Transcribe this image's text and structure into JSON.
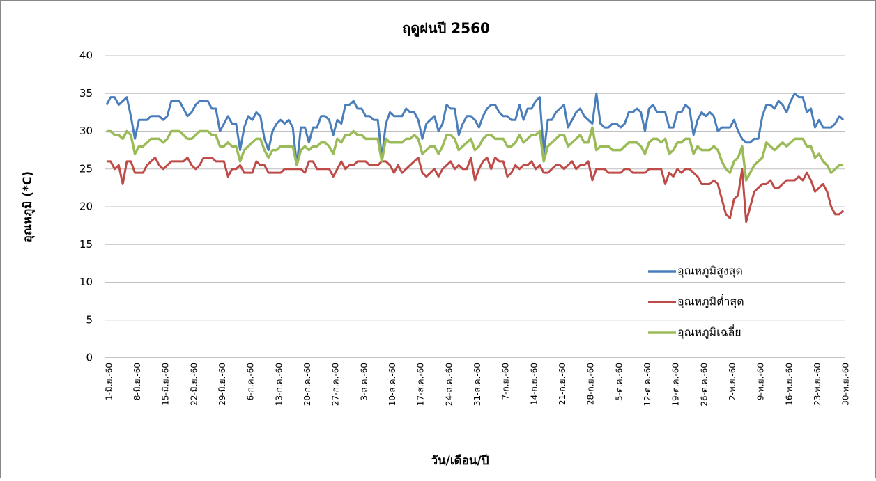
{
  "chart_data": {
    "type": "line",
    "title": "ฤดูฝนปี 2560",
    "y_label": "อุณหภูมิ (*C)",
    "x_label": "วัน/เดือน/ปี",
    "ylim": [
      0,
      40
    ],
    "yticks": [
      0,
      5,
      10,
      15,
      20,
      25,
      30,
      35,
      40
    ],
    "grid": true,
    "legend": "right",
    "categories": [
      "1-มิ.ย.-60",
      null,
      null,
      null,
      null,
      null,
      null,
      "8-มิ.ย.-60",
      null,
      null,
      null,
      null,
      null,
      null,
      "15-มิ.ย.-60",
      null,
      null,
      null,
      null,
      null,
      null,
      "22-มิ.ย.-60",
      null,
      null,
      null,
      null,
      null,
      null,
      "29-มิ.ย.-60",
      null,
      null,
      null,
      null,
      null,
      null,
      "6-ก.ค.-60",
      null,
      null,
      null,
      null,
      null,
      null,
      "13-ก.ค.-60",
      null,
      null,
      null,
      null,
      null,
      null,
      "20-ก.ค.-60",
      null,
      null,
      null,
      null,
      null,
      null,
      "27-ก.ค.-60",
      null,
      null,
      null,
      null,
      null,
      null,
      "3-ส.ค.-60",
      null,
      null,
      null,
      null,
      null,
      null,
      "10-ส.ค.-60",
      null,
      null,
      null,
      null,
      null,
      null,
      "17-ส.ค.-60",
      null,
      null,
      null,
      null,
      null,
      null,
      "24-ส.ค.-60",
      null,
      null,
      null,
      null,
      null,
      null,
      "31-ส.ค.-60",
      null,
      null,
      null,
      null,
      null,
      null,
      "7-ก.ย.-60",
      null,
      null,
      null,
      null,
      null,
      null,
      "14-ก.ย.-60",
      null,
      null,
      null,
      null,
      null,
      null,
      "21-ก.ย.-60",
      null,
      null,
      null,
      null,
      null,
      null,
      "28-ก.ย.-60",
      null,
      null,
      null,
      null,
      null,
      null,
      "5-ต.ค.-60",
      null,
      null,
      null,
      null,
      null,
      null,
      "12-ต.ค.-60",
      null,
      null,
      null,
      null,
      null,
      null,
      "19-ต.ค.-60",
      null,
      null,
      null,
      null,
      null,
      null,
      "26-ต.ค.-60",
      null,
      null,
      null,
      null,
      null,
      null,
      "2-พ.ย.-60",
      null,
      null,
      null,
      null,
      null,
      null,
      "9-พ.ย.-60",
      null,
      null,
      null,
      null,
      null,
      null,
      "16-พ.ย.-60",
      null,
      null,
      null,
      null,
      null,
      null,
      "23-พ.ย.-60",
      null,
      null,
      null,
      null,
      null,
      null,
      "30-พ.ย.-60"
    ],
    "series": [
      {
        "name": "อุณหภูมิสูงสุด",
        "color": "#4a7ebb",
        "values": [
          33.5,
          34.5,
          34.5,
          33.5,
          34,
          34.5,
          32,
          29,
          31.5,
          31.5,
          31.5,
          32,
          32,
          32,
          31.5,
          32,
          34,
          34,
          34,
          33,
          32,
          32.5,
          33.5,
          34,
          34,
          34,
          33,
          33,
          30,
          31,
          32,
          31,
          31,
          27.5,
          30.5,
          32,
          31.5,
          32.5,
          32,
          29,
          27.5,
          30,
          31,
          31.5,
          31,
          31.5,
          30.5,
          25.5,
          30.5,
          30.5,
          28.5,
          30.5,
          30.5,
          32,
          32,
          31.5,
          29.5,
          31.5,
          31,
          33.5,
          33.5,
          34,
          33,
          33,
          32,
          32,
          31.5,
          31.5,
          26.5,
          31,
          32.5,
          32,
          32,
          32,
          33,
          32.5,
          32.5,
          31.5,
          29,
          31,
          31.5,
          32,
          30,
          31,
          33.5,
          33,
          33,
          29.5,
          31,
          32,
          32,
          31.5,
          30.5,
          32,
          33,
          33.5,
          33.5,
          32.5,
          32,
          32,
          31.5,
          31.5,
          33.5,
          31.5,
          33,
          33,
          34,
          34.5,
          27,
          31.5,
          31.5,
          32.5,
          33,
          33.5,
          30.5,
          31.5,
          32.5,
          33,
          32,
          31.5,
          31,
          35,
          31,
          30.5,
          30.5,
          31,
          31,
          30.5,
          31,
          32.5,
          32.5,
          33,
          32.5,
          30,
          33,
          33.5,
          32.5,
          32.5,
          32.5,
          30.5,
          30.5,
          32.5,
          32.5,
          33.5,
          33,
          29.5,
          31.5,
          32.5,
          32,
          32.5,
          32,
          30,
          30.5,
          30.5,
          30.5,
          31.5,
          30,
          29,
          28.5,
          28.5,
          29,
          29,
          32,
          33.5,
          33.5,
          33,
          34,
          33.5,
          32.5,
          34,
          35,
          34.5,
          34.5,
          32.5,
          33,
          30.5,
          31.5,
          30.5,
          30.5,
          30.5,
          31,
          32,
          31.5
        ]
      },
      {
        "name": "อุณหภูมิต่ำสุด",
        "color": "#be4b48",
        "values": [
          26,
          26,
          25,
          25.5,
          23,
          26,
          26,
          24.5,
          24.5,
          24.5,
          25.5,
          26,
          26.5,
          25.5,
          25,
          25.5,
          26,
          26,
          26,
          26,
          26.5,
          25.5,
          25,
          25.5,
          26.5,
          26.5,
          26.5,
          26,
          26,
          26,
          24,
          25,
          25,
          25.5,
          24.5,
          24.5,
          24.5,
          26,
          25.5,
          25.5,
          24.5,
          24.5,
          24.5,
          24.5,
          25,
          25,
          25,
          25,
          25,
          24.5,
          26,
          26,
          25,
          25,
          25,
          25,
          24,
          25,
          26,
          25,
          25.5,
          25.5,
          26,
          26,
          26,
          25.5,
          25.5,
          25.5,
          26,
          26,
          25.5,
          24.5,
          25.5,
          24.5,
          25,
          25.5,
          26,
          26.5,
          24.5,
          24,
          24.5,
          25,
          24,
          25,
          25.5,
          26,
          25,
          25.5,
          25,
          25,
          26.5,
          23.5,
          25,
          26,
          26.5,
          25,
          26.5,
          26,
          26,
          24,
          24.5,
          25.5,
          25,
          25.5,
          25.5,
          26,
          25,
          25.5,
          24.5,
          24.5,
          25,
          25.5,
          25.5,
          25,
          25.5,
          26,
          25,
          25.5,
          25.5,
          26,
          23.5,
          25,
          25,
          25,
          24.5,
          24.5,
          24.5,
          24.5,
          25,
          25,
          24.5,
          24.5,
          24.5,
          24.5,
          25,
          25,
          25,
          25,
          23,
          24.5,
          24,
          25,
          24.5,
          25,
          25,
          24.5,
          24,
          23,
          23,
          23,
          23.5,
          23,
          21,
          19,
          18.5,
          21,
          21.5,
          25,
          18,
          20,
          22,
          22.5,
          23,
          23,
          23.5,
          22.5,
          22.5,
          23,
          23.5,
          23.5,
          23.5,
          24,
          23.5,
          24.5,
          23.5,
          22,
          22.5,
          23,
          22,
          20,
          19,
          19,
          19.5
        ]
      },
      {
        "name": "อุณหภูมิเฉลี่ย",
        "color": "#9bbb59",
        "values": [
          30,
          30,
          29.5,
          29.5,
          29,
          30,
          29.5,
          27,
          28,
          28,
          28.5,
          29,
          29,
          29,
          28.5,
          29,
          30,
          30,
          30,
          29.5,
          29,
          29,
          29.5,
          30,
          30,
          30,
          29.5,
          29.5,
          28,
          28,
          28.5,
          28,
          28,
          26,
          27.5,
          28,
          28.5,
          29,
          29,
          27.5,
          26.5,
          27.5,
          27.5,
          28,
          28,
          28,
          28,
          25.5,
          27.5,
          28,
          27.5,
          28,
          28,
          28.5,
          28.5,
          28,
          27,
          29,
          28.5,
          29.5,
          29.5,
          30,
          29.5,
          29.5,
          29,
          29,
          29,
          29,
          26,
          29,
          28.5,
          28.5,
          28.5,
          28.5,
          29,
          29,
          29.5,
          29,
          27,
          27.5,
          28,
          28,
          27,
          28,
          29.5,
          29.5,
          29,
          27.5,
          28,
          28.5,
          29,
          27.5,
          28,
          29,
          29.5,
          29.5,
          29,
          29,
          29,
          28,
          28,
          28.5,
          29.5,
          28.5,
          29,
          29.5,
          29.5,
          30,
          26,
          28,
          28.5,
          29,
          29.5,
          29.5,
          28,
          28.5,
          29,
          29.5,
          28.5,
          28.5,
          30.5,
          27.5,
          28,
          28,
          28,
          27.5,
          27.5,
          27.5,
          28,
          28.5,
          28.5,
          28.5,
          28,
          27,
          28.5,
          29,
          29,
          28.5,
          29,
          27,
          27.5,
          28.5,
          28.5,
          29,
          29,
          27,
          28,
          27.5,
          27.5,
          27.5,
          28,
          27.5,
          26,
          25,
          24.5,
          26,
          26.5,
          28,
          23.5,
          24.5,
          25.5,
          26,
          26.5,
          28.5,
          28,
          27.5,
          28,
          28.5,
          28,
          28.5,
          29,
          29,
          29,
          28,
          28,
          26.5,
          27,
          26,
          25.5,
          24.5,
          25,
          25.5,
          25.5
        ]
      }
    ]
  }
}
